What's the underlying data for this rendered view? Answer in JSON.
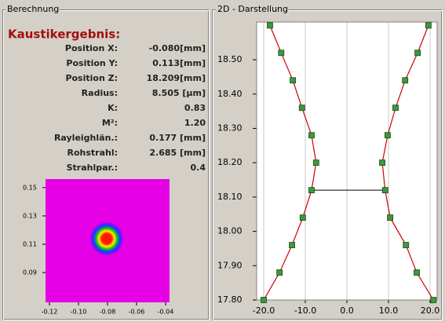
{
  "left_panel": {
    "title": "Berechnung",
    "heading": "Kaustikergebnis:",
    "rows": [
      {
        "label": "Position X:",
        "value": "-0.080[mm]"
      },
      {
        "label": "Position Y:",
        "value": "0.113[mm]"
      },
      {
        "label": "Position Z:",
        "value": "18.209[mm]"
      },
      {
        "label": "Radius:",
        "value": "8.505 [µm]"
      },
      {
        "label": "K:",
        "value": "0.83"
      },
      {
        "label": "M²:",
        "value": "1.20"
      },
      {
        "label": "Rayleighlän.:",
        "value": "0.177 [mm]"
      },
      {
        "label": "Rohstrahl:",
        "value": "2.685 [mm]"
      },
      {
        "label": "Strahlpar.:",
        "value": "0.4"
      }
    ]
  },
  "right_panel": {
    "title": "2D - Darstellung"
  },
  "chart_data": [
    {
      "type": "image",
      "xlim": [
        -0.1227,
        -0.0373
      ],
      "ylim": [
        0.069,
        0.156
      ],
      "xticks": [
        -0.12,
        {
          "value": -0.1,
          "label": "-0.10"
        },
        -0.08,
        -0.06,
        -0.04
      ],
      "yticks": [
        0.15,
        0.13,
        0.11,
        0.09
      ]
    },
    {
      "type": "line",
      "xlim": [
        -21.7,
        21.7
      ],
      "ylim": [
        17.8,
        18.61
      ],
      "grid": true,
      "xticks": [
        {
          "value": -20,
          "label": "-20.0"
        },
        {
          "value": -10,
          "label": "-10.0"
        },
        {
          "value": 0,
          "label": "0.0"
        },
        {
          "value": 10,
          "label": "10.0"
        },
        {
          "value": 20,
          "label": "20.0"
        }
      ],
      "yticks": [
        {
          "value": 17.8,
          "label": "17.80"
        },
        {
          "value": 17.9,
          "label": "17.90"
        },
        {
          "value": 18.0,
          "label": "18.00"
        },
        {
          "value": 18.1,
          "label": "18.10"
        },
        {
          "value": 18.2,
          "label": "18.20"
        },
        {
          "value": 18.3,
          "label": "18.30"
        },
        {
          "value": 18.4,
          "label": "18.40"
        },
        {
          "value": 18.5,
          "label": "18.50"
        }
      ],
      "series": [
        {
          "color": "#cc0000",
          "marker_color": "#3a9a3a",
          "x": [
            -18.5,
            -15.8,
            -13.0,
            -10.8,
            -8.5,
            -7.4,
            -8.5,
            -10.6,
            -13.2,
            -16.2,
            -20.0
          ],
          "y": [
            18.6,
            18.52,
            18.44,
            18.36,
            18.28,
            18.2,
            18.12,
            18.04,
            17.96,
            17.88,
            17.8
          ]
        },
        {
          "color": "#cc0000",
          "marker_color": "#3a9a3a",
          "x": [
            19.6,
            17.0,
            14.0,
            11.7,
            9.8,
            8.5,
            9.2,
            10.4,
            14.2,
            16.8,
            20.8
          ],
          "y": [
            18.6,
            18.52,
            18.44,
            18.36,
            18.28,
            18.2,
            18.12,
            18.04,
            17.96,
            17.88,
            17.8
          ]
        }
      ]
    }
  ]
}
